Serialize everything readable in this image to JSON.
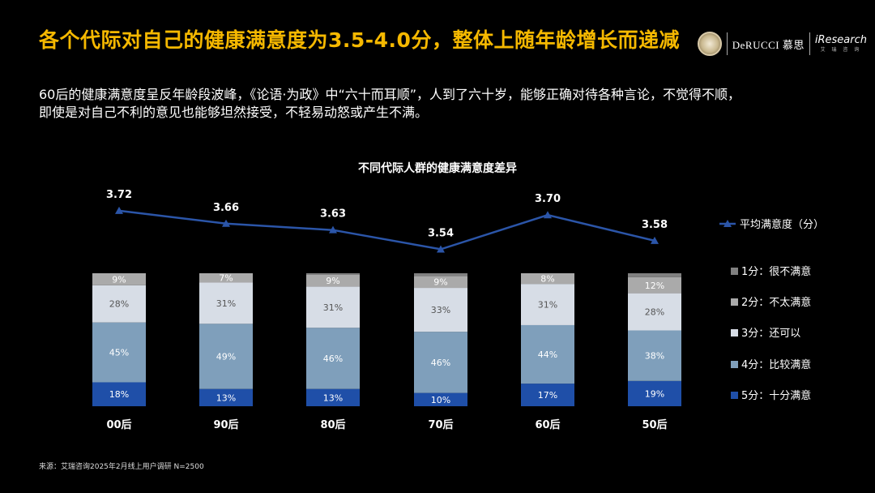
{
  "header": {
    "title": "各个代际对自己的健康满意度为3.5-4.0分，整体上随年龄增长而递减",
    "brand_derucci": "DeRUCCI 慕思",
    "brand_iresearch": "iResearch",
    "brand_iresearch_sub": "艾 瑞 咨 询"
  },
  "description": {
    "line1": "60后的健康满意度呈反年龄段波峰，《论语·为政》中“六十而耳顺”，人到了六十岁，能够正确对待各种言论，不觉得不顺，",
    "line2": "即使是对自己不利的意见也能够坦然接受，不轻易动怒或产生不满。"
  },
  "source": "来源：艾瑞咨询2025年2月线上用户调研 N=2500",
  "colors": {
    "title": "#f5b800",
    "line": "#2b55a8",
    "s5": "#1f4fa8",
    "s4": "#7f9fbb",
    "s3": "#d7dde6",
    "s2": "#aaaaaa",
    "s1": "#808080"
  },
  "chart_data": {
    "type": "bar",
    "subtype": "stacked-100-with-line",
    "title": "不同代际人群的健康满意度差异",
    "categories": [
      "00后",
      "90后",
      "80后",
      "70后",
      "60后",
      "50后"
    ],
    "series": [
      {
        "name": "5分：十分满意",
        "values": [
          18,
          13,
          13,
          10,
          17,
          19
        ]
      },
      {
        "name": "4分：比较满意",
        "values": [
          45,
          49,
          46,
          46,
          44,
          38
        ]
      },
      {
        "name": "3分：还可以",
        "values": [
          28,
          31,
          31,
          33,
          31,
          28
        ]
      },
      {
        "name": "2分：不太满意",
        "values": [
          9,
          7,
          9,
          9,
          8,
          12
        ]
      },
      {
        "name": "1分：很不满意",
        "values": [
          0,
          0,
          1,
          2,
          0,
          3
        ]
      }
    ],
    "line": {
      "name": "平均满意度（分）",
      "values": [
        3.72,
        3.66,
        3.63,
        3.54,
        3.7,
        3.58
      ],
      "labels": [
        "3.72",
        "3.66",
        "3.63",
        "3.54",
        "3.70",
        "3.58"
      ]
    },
    "segment_labels": [
      [
        "18%",
        "13%",
        "13%",
        "10%",
        "17%",
        "19%"
      ],
      [
        "45%",
        "49%",
        "46%",
        "46%",
        "44%",
        "38%"
      ],
      [
        "28%",
        "31%",
        "31%",
        "33%",
        "31%",
        "28%"
      ],
      [
        "9%",
        "7%",
        "9%",
        "9%",
        "8%",
        "12%"
      ],
      [
        "",
        "",
        "",
        "",
        "",
        ""
      ]
    ],
    "legend_position": "right",
    "grid": false
  }
}
